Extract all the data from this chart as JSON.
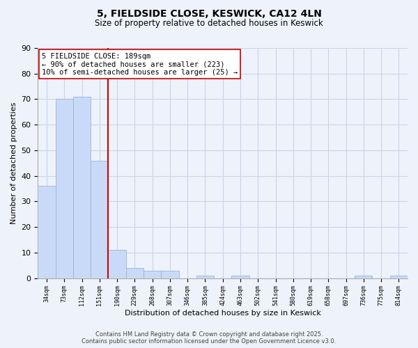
{
  "title": "5, FIELDSIDE CLOSE, KESWICK, CA12 4LN",
  "subtitle": "Size of property relative to detached houses in Keswick",
  "xlabel": "Distribution of detached houses by size in Keswick",
  "ylabel": "Number of detached properties",
  "categories": [
    "34sqm",
    "73sqm",
    "112sqm",
    "151sqm",
    "190sqm",
    "229sqm",
    "268sqm",
    "307sqm",
    "346sqm",
    "385sqm",
    "424sqm",
    "463sqm",
    "502sqm",
    "541sqm",
    "580sqm",
    "619sqm",
    "658sqm",
    "697sqm",
    "736sqm",
    "775sqm",
    "814sqm"
  ],
  "values": [
    36,
    70,
    71,
    46,
    11,
    4,
    3,
    3,
    0,
    1,
    0,
    1,
    0,
    0,
    0,
    0,
    0,
    0,
    1,
    0,
    1
  ],
  "bar_color": "#c9daf8",
  "bar_edge_color": "#9ab4d8",
  "vline_x": 3.5,
  "vline_color": "#cc0000",
  "annotation_text": "5 FIELDSIDE CLOSE: 189sqm\n← 90% of detached houses are smaller (223)\n10% of semi-detached houses are larger (25) →",
  "annotation_box_color": "white",
  "annotation_box_edge": "#cc0000",
  "ylim": [
    0,
    90
  ],
  "yticks": [
    0,
    10,
    20,
    30,
    40,
    50,
    60,
    70,
    80,
    90
  ],
  "grid_color": "#c8d4e8",
  "background_color": "#eef2fb",
  "footer_line1": "Contains HM Land Registry data © Crown copyright and database right 2025.",
  "footer_line2": "Contains public sector information licensed under the Open Government Licence v3.0."
}
